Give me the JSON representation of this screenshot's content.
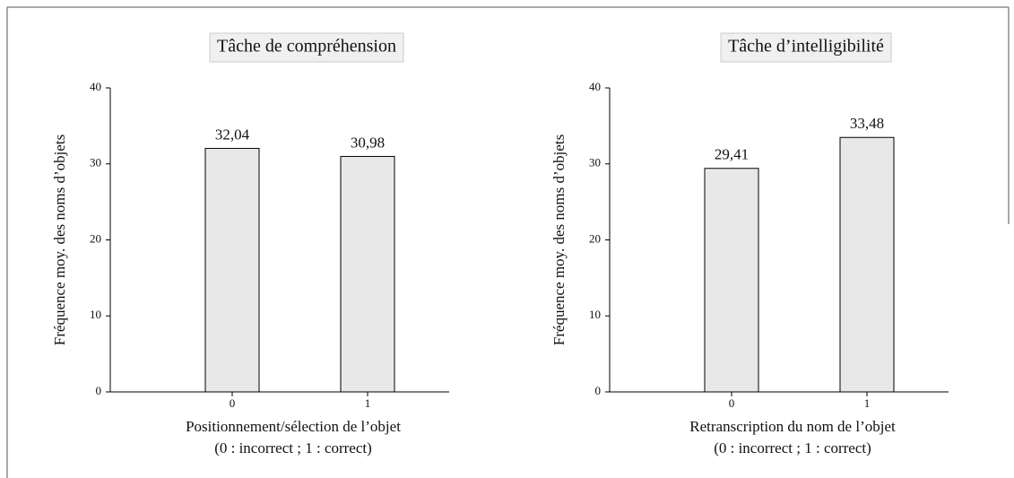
{
  "chart_data": [
    {
      "type": "bar",
      "title": "Tâche de compréhension",
      "categories": [
        "0",
        "1"
      ],
      "values": [
        32.04,
        30.98
      ],
      "value_labels": [
        "32,04",
        "30,98"
      ],
      "color": "#e8e8e8",
      "ylabel": "Fréquence moy. des noms d’objets",
      "xlabel": [
        "Positionnement/sélection de l’objet",
        "(0 : incorrect ; 1 : correct)"
      ],
      "ylim": [
        0,
        40
      ],
      "yticks": [
        0,
        10,
        20,
        30,
        40
      ]
    },
    {
      "type": "bar",
      "title": "Tâche d’intelligibilité",
      "categories": [
        "0",
        "1"
      ],
      "values": [
        29.41,
        33.48
      ],
      "value_labels": [
        "29,41",
        "33,48"
      ],
      "color": "#e8e8e8",
      "ylabel": "Fréquence moy. des noms d’objets",
      "xlabel": [
        "Retranscription du nom de l’objet",
        "(0 : incorrect ; 1 : correct)"
      ],
      "ylim": [
        0,
        40
      ],
      "yticks": [
        0,
        10,
        20,
        30,
        40
      ]
    }
  ]
}
